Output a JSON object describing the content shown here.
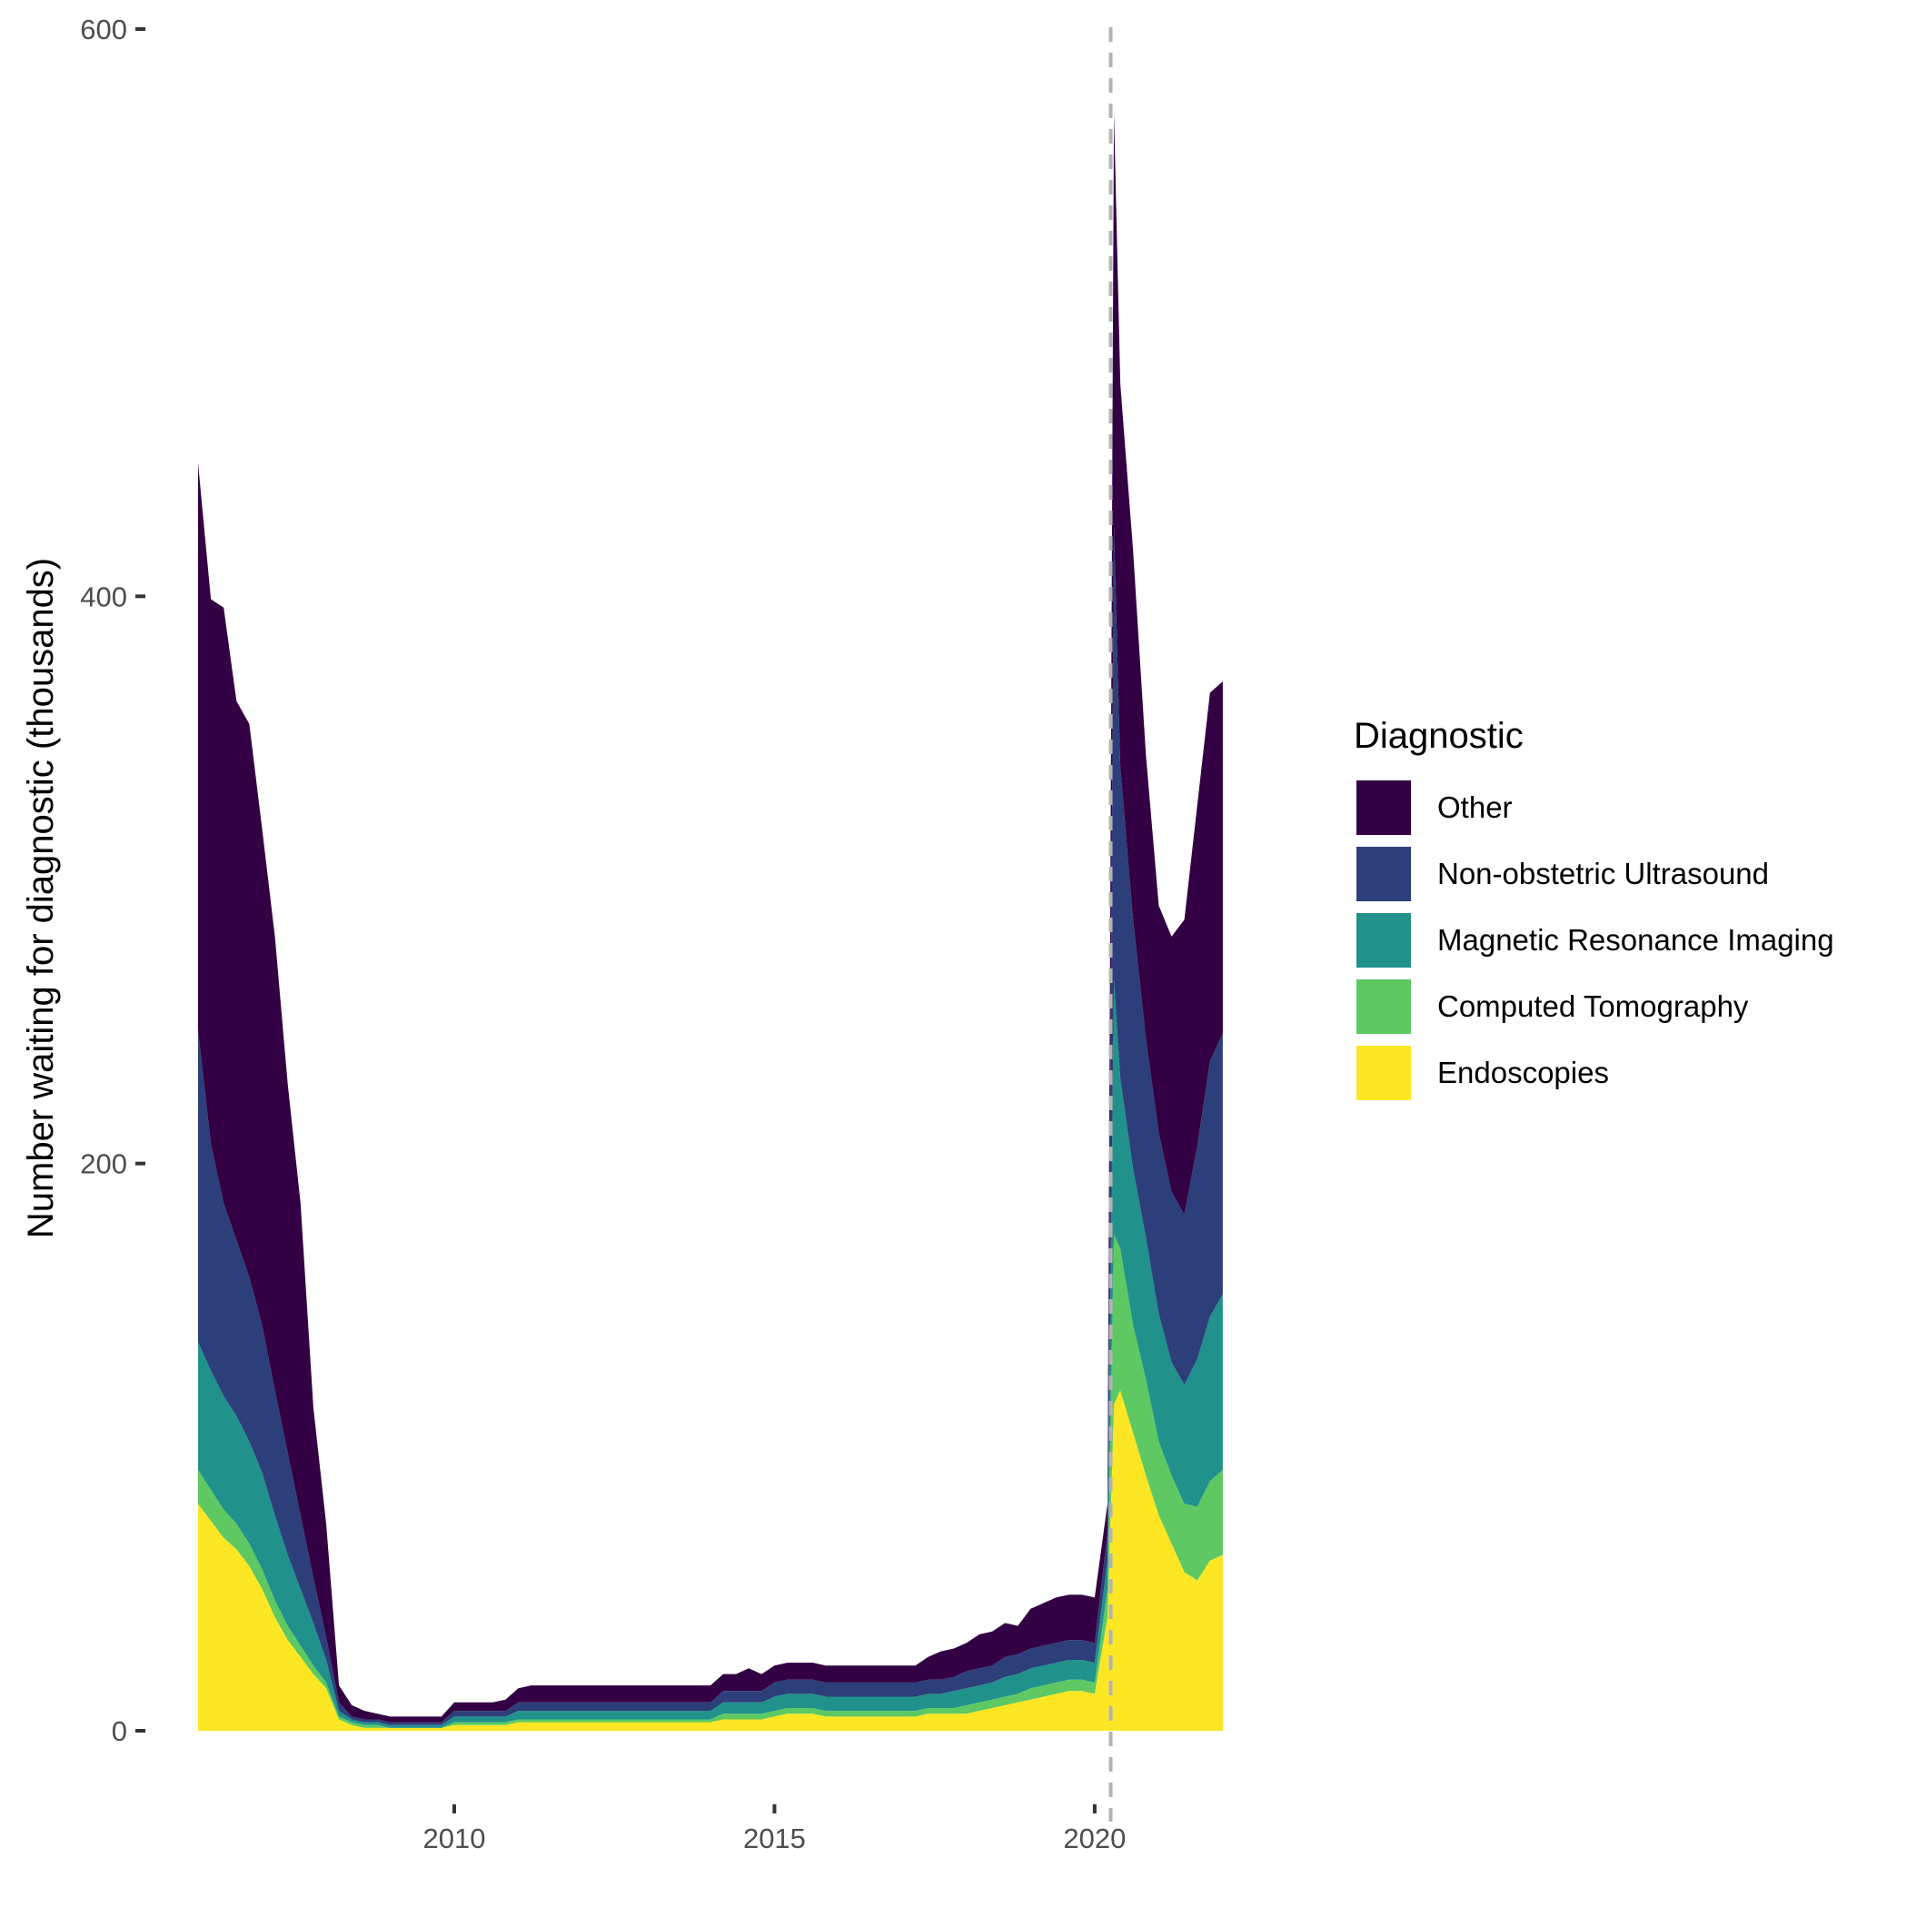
{
  "chart_data": {
    "type": "area",
    "stacked": true,
    "ylabel": "Number waiting for diagnostic (thousands)",
    "xlabel": "",
    "xlim": [
      2006.0,
      2022.2
    ],
    "ylim": [
      0,
      600
    ],
    "x_ticks": [
      2010,
      2015,
      2020
    ],
    "y_ticks": [
      0,
      200,
      400,
      600
    ],
    "grid": false,
    "vline": {
      "x": 2020.25,
      "style": "dashed",
      "color": "#b3b3b3"
    },
    "legend": {
      "title": "Diagnostic",
      "position": "right",
      "entries": [
        "Other",
        "Non-obstetric Ultrasound",
        "Magnetic Resonance Imaging",
        "Computed Tomography",
        "Endoscopies"
      ]
    },
    "x": [
      2006.0,
      2006.2,
      2006.4,
      2006.6,
      2006.8,
      2007.0,
      2007.2,
      2007.4,
      2007.6,
      2007.8,
      2008.0,
      2008.2,
      2008.4,
      2008.6,
      2008.8,
      2009.0,
      2009.2,
      2009.4,
      2009.6,
      2009.8,
      2010.0,
      2010.2,
      2010.4,
      2010.6,
      2010.8,
      2011.0,
      2011.2,
      2011.4,
      2011.6,
      2011.8,
      2012.0,
      2012.2,
      2012.4,
      2012.6,
      2012.8,
      2013.0,
      2013.2,
      2013.4,
      2013.6,
      2013.8,
      2014.0,
      2014.2,
      2014.4,
      2014.6,
      2014.8,
      2015.0,
      2015.2,
      2015.4,
      2015.6,
      2015.8,
      2016.0,
      2016.2,
      2016.4,
      2016.6,
      2016.8,
      2017.0,
      2017.2,
      2017.4,
      2017.6,
      2017.8,
      2018.0,
      2018.2,
      2018.4,
      2018.6,
      2018.8,
      2019.0,
      2019.2,
      2019.4,
      2019.6,
      2019.8,
      2020.0,
      2020.2,
      2020.3,
      2020.4,
      2020.6,
      2020.8,
      2021.0,
      2021.2,
      2021.4,
      2021.6,
      2021.8,
      2022.0
    ],
    "series": [
      {
        "name": "Endoscopies",
        "color": "#fde725",
        "values": [
          80,
          74,
          68,
          64,
          58,
          50,
          40,
          32,
          26,
          20,
          15,
          4,
          2,
          1,
          1,
          1,
          1,
          1,
          1,
          1,
          2,
          2,
          2,
          2,
          2,
          3,
          3,
          3,
          3,
          3,
          3,
          3,
          3,
          3,
          3,
          3,
          3,
          3,
          3,
          3,
          3,
          4,
          4,
          4,
          4,
          5,
          6,
          6,
          6,
          5,
          5,
          5,
          5,
          5,
          5,
          5,
          5,
          6,
          6,
          6,
          6,
          7,
          8,
          9,
          10,
          11,
          12,
          13,
          14,
          14,
          13,
          40,
          115,
          120,
          105,
          90,
          76,
          66,
          56,
          53,
          60,
          62
        ]
      },
      {
        "name": "Computed Tomography",
        "color": "#5ec962",
        "values": [
          12,
          11,
          10,
          9,
          8,
          7,
          6,
          5,
          4,
          3,
          2,
          1,
          1,
          1,
          1,
          0,
          0,
          0,
          0,
          0,
          1,
          1,
          1,
          1,
          1,
          1,
          1,
          1,
          1,
          1,
          1,
          1,
          1,
          1,
          1,
          1,
          1,
          1,
          1,
          1,
          1,
          2,
          2,
          2,
          2,
          2,
          2,
          2,
          2,
          2,
          2,
          2,
          2,
          2,
          2,
          2,
          2,
          2,
          2,
          2,
          3,
          3,
          3,
          3,
          3,
          4,
          4,
          4,
          4,
          4,
          4,
          10,
          60,
          50,
          38,
          34,
          26,
          24,
          24,
          26,
          28,
          30
        ]
      },
      {
        "name": "Magnetic Resonance Imaging",
        "color": "#21918c",
        "values": [
          45,
          42,
          40,
          38,
          36,
          34,
          30,
          25,
          20,
          15,
          8,
          2,
          1,
          1,
          1,
          1,
          1,
          1,
          1,
          1,
          2,
          2,
          2,
          2,
          2,
          3,
          3,
          3,
          3,
          3,
          3,
          3,
          3,
          3,
          3,
          3,
          3,
          3,
          3,
          3,
          3,
          4,
          4,
          4,
          4,
          5,
          5,
          5,
          5,
          5,
          5,
          5,
          5,
          5,
          5,
          5,
          5,
          5,
          5,
          6,
          6,
          6,
          6,
          7,
          7,
          7,
          7,
          7,
          7,
          7,
          7,
          10,
          90,
          60,
          55,
          50,
          45,
          40,
          42,
          52,
          58,
          62
        ]
      },
      {
        "name": "Non-obstetric Ultrasound",
        "color": "#2c3f7a",
        "values": [
          110,
          80,
          68,
          62,
          58,
          52,
          44,
          36,
          26,
          16,
          8,
          3,
          1,
          1,
          1,
          1,
          1,
          1,
          1,
          1,
          2,
          2,
          2,
          2,
          2,
          3,
          3,
          3,
          3,
          3,
          3,
          3,
          3,
          3,
          3,
          3,
          3,
          3,
          3,
          3,
          3,
          4,
          4,
          4,
          4,
          5,
          5,
          5,
          5,
          5,
          5,
          5,
          5,
          5,
          5,
          5,
          5,
          5,
          5,
          5,
          6,
          6,
          6,
          7,
          7,
          7,
          7,
          7,
          7,
          7,
          7,
          10,
          160,
          110,
          88,
          70,
          64,
          60,
          60,
          75,
          90,
          92
        ]
      },
      {
        "name": "Other",
        "color": "#330043",
        "values": [
          200,
          192,
          210,
          190,
          195,
          175,
          160,
          130,
          110,
          60,
          40,
          6,
          4,
          3,
          2,
          2,
          2,
          2,
          2,
          2,
          3,
          3,
          3,
          3,
          4,
          5,
          6,
          6,
          6,
          6,
          6,
          6,
          6,
          6,
          6,
          6,
          6,
          6,
          6,
          6,
          6,
          6,
          6,
          8,
          6,
          6,
          6,
          6,
          6,
          6,
          6,
          6,
          6,
          6,
          6,
          6,
          6,
          8,
          10,
          10,
          10,
          12,
          12,
          12,
          10,
          14,
          15,
          16,
          16,
          16,
          16,
          10,
          146,
          135,
          130,
          100,
          80,
          90,
          104,
          120,
          130,
          124
        ]
      }
    ]
  }
}
